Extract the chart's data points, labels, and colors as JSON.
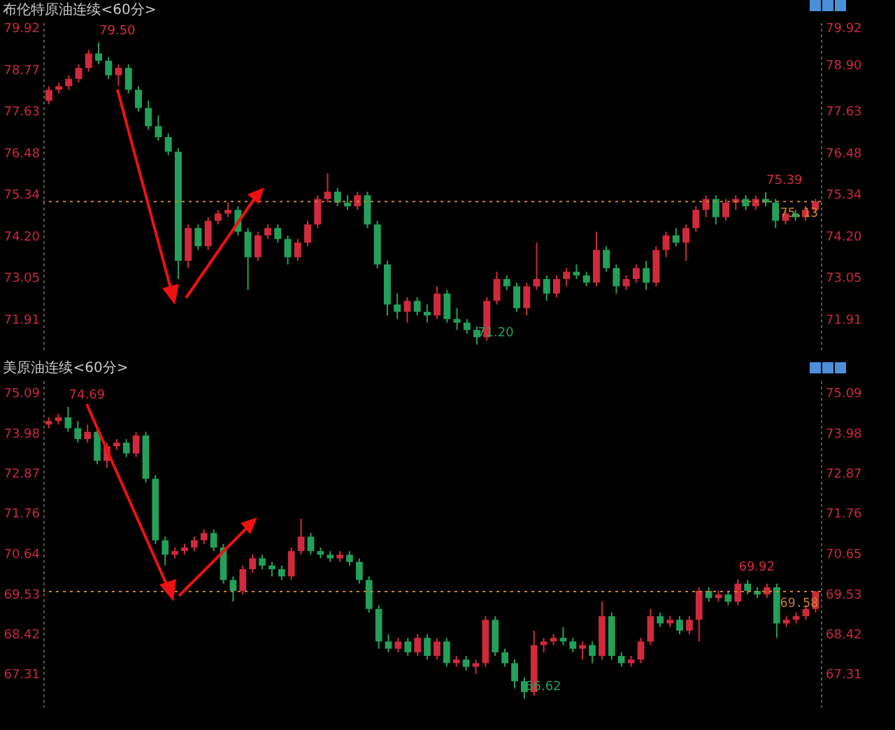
{
  "chart_data": [
    {
      "type": "candlestick",
      "title": "布伦特原油连续<60分>",
      "tick_labels": "y",
      "categories": [
        null,
        null,
        null,
        null,
        null,
        null,
        null,
        null,
        null,
        null,
        null,
        null,
        null,
        null,
        null,
        null,
        null,
        null,
        null,
        null,
        null,
        null,
        null,
        null,
        null,
        null,
        null,
        null,
        null,
        null,
        null,
        null,
        null,
        null,
        null,
        null,
        null,
        null,
        null,
        null,
        null,
        null,
        null,
        null,
        null,
        null,
        null,
        null,
        null,
        null,
        null,
        null,
        null,
        null,
        null,
        null,
        null,
        null,
        null,
        null,
        null,
        null,
        null,
        null,
        null,
        null,
        null,
        null,
        null,
        null,
        null,
        null,
        null,
        null,
        null,
        null,
        null,
        null
      ],
      "ohlc": [
        [
          77.9,
          78.3,
          77.8,
          78.2
        ],
        [
          78.2,
          78.4,
          78.1,
          78.3
        ],
        [
          78.3,
          78.6,
          78.2,
          78.5
        ],
        [
          78.5,
          78.9,
          78.4,
          78.8
        ],
        [
          78.8,
          79.3,
          78.7,
          79.2
        ],
        [
          79.2,
          79.5,
          78.9,
          79.0
        ],
        [
          79.0,
          79.1,
          78.5,
          78.6
        ],
        [
          78.6,
          78.9,
          78.3,
          78.8
        ],
        [
          78.8,
          78.9,
          78.1,
          78.2
        ],
        [
          78.2,
          78.3,
          77.6,
          77.7
        ],
        [
          77.7,
          77.9,
          77.1,
          77.2
        ],
        [
          77.2,
          77.5,
          76.8,
          76.9
        ],
        [
          76.9,
          77.0,
          76.4,
          76.5
        ],
        [
          76.5,
          76.6,
          73.0,
          73.5
        ],
        [
          73.5,
          74.5,
          73.3,
          74.4
        ],
        [
          74.4,
          74.5,
          73.8,
          73.9
        ],
        [
          73.9,
          74.7,
          73.8,
          74.6
        ],
        [
          74.6,
          74.9,
          74.5,
          74.8
        ],
        [
          74.8,
          75.1,
          74.7,
          74.9
        ],
        [
          74.9,
          75.0,
          74.2,
          74.3
        ],
        [
          74.3,
          74.4,
          72.7,
          73.6
        ],
        [
          73.6,
          74.3,
          73.5,
          74.2
        ],
        [
          74.2,
          74.5,
          74.1,
          74.4
        ],
        [
          74.4,
          74.5,
          74.0,
          74.1
        ],
        [
          74.1,
          74.2,
          73.4,
          73.6
        ],
        [
          73.6,
          74.1,
          73.5,
          74.0
        ],
        [
          74.0,
          74.6,
          73.9,
          74.5
        ],
        [
          74.5,
          75.3,
          74.4,
          75.2
        ],
        [
          75.2,
          75.9,
          75.1,
          75.4
        ],
        [
          75.4,
          75.5,
          75.0,
          75.1
        ],
        [
          75.1,
          75.3,
          74.9,
          75.0
        ],
        [
          75.0,
          75.4,
          74.9,
          75.3
        ],
        [
          75.3,
          75.4,
          74.4,
          74.5
        ],
        [
          74.5,
          74.6,
          73.3,
          73.4
        ],
        [
          73.4,
          73.5,
          72.0,
          72.3
        ],
        [
          72.3,
          72.6,
          71.9,
          72.1
        ],
        [
          72.1,
          72.5,
          71.8,
          72.4
        ],
        [
          72.4,
          72.5,
          72.0,
          72.1
        ],
        [
          72.1,
          72.3,
          71.8,
          72.0
        ],
        [
          72.0,
          72.8,
          71.9,
          72.6
        ],
        [
          72.6,
          72.7,
          71.8,
          71.9
        ],
        [
          71.9,
          72.2,
          71.6,
          71.8
        ],
        [
          71.8,
          71.9,
          71.5,
          71.6
        ],
        [
          71.6,
          71.7,
          71.2,
          71.4
        ],
        [
          71.4,
          72.5,
          71.3,
          72.4
        ],
        [
          72.4,
          73.2,
          72.3,
          73.0
        ],
        [
          73.0,
          73.1,
          72.7,
          72.8
        ],
        [
          72.8,
          72.9,
          72.1,
          72.2
        ],
        [
          72.2,
          72.9,
          72.0,
          72.8
        ],
        [
          72.8,
          74.0,
          72.7,
          73.0
        ],
        [
          73.0,
          73.1,
          72.4,
          72.6
        ],
        [
          72.6,
          73.1,
          72.5,
          73.0
        ],
        [
          73.0,
          73.3,
          72.8,
          73.2
        ],
        [
          73.2,
          73.4,
          73.0,
          73.1
        ],
        [
          73.1,
          73.2,
          72.8,
          72.9
        ],
        [
          72.9,
          74.3,
          72.8,
          73.8
        ],
        [
          73.8,
          73.9,
          73.2,
          73.3
        ],
        [
          73.3,
          73.4,
          72.6,
          72.8
        ],
        [
          72.8,
          73.1,
          72.7,
          73.0
        ],
        [
          73.0,
          73.4,
          72.9,
          73.3
        ],
        [
          73.3,
          73.5,
          72.7,
          72.9
        ],
        [
          72.9,
          73.9,
          72.8,
          73.8
        ],
        [
          73.8,
          74.3,
          73.6,
          74.2
        ],
        [
          74.2,
          74.4,
          73.9,
          74.0
        ],
        [
          74.0,
          74.5,
          73.5,
          74.4
        ],
        [
          74.4,
          75.0,
          74.3,
          74.9
        ],
        [
          74.9,
          75.3,
          74.7,
          75.2
        ],
        [
          75.2,
          75.3,
          74.5,
          74.7
        ],
        [
          74.7,
          75.2,
          74.6,
          75.1
        ],
        [
          75.1,
          75.3,
          74.9,
          75.2
        ],
        [
          75.2,
          75.3,
          74.9,
          75.0
        ],
        [
          75.0,
          75.3,
          74.9,
          75.2
        ],
        [
          75.2,
          75.39,
          75.0,
          75.1
        ],
        [
          75.1,
          75.2,
          74.4,
          74.6
        ],
        [
          74.6,
          74.9,
          74.5,
          74.8
        ],
        [
          74.8,
          74.9,
          74.6,
          74.7
        ],
        [
          74.7,
          75.0,
          74.6,
          74.9
        ],
        [
          74.9,
          75.2,
          74.8,
          75.13
        ]
      ],
      "value_labels": [
        null,
        null,
        null,
        null,
        null,
        "79.50",
        null,
        null,
        null,
        null,
        null,
        null,
        null,
        null,
        null,
        null,
        null,
        null,
        null,
        null,
        null,
        null,
        null,
        null,
        null,
        null,
        null,
        null,
        null,
        null,
        null,
        null,
        null,
        null,
        null,
        null,
        null,
        null,
        null,
        null,
        null,
        null,
        null,
        "71.20",
        null,
        null,
        null,
        null,
        null,
        null,
        null,
        null,
        null,
        null,
        null,
        null,
        null,
        null,
        null,
        null,
        null,
        null,
        null,
        null,
        null,
        null,
        null,
        null,
        null,
        null,
        null,
        null,
        "75.39",
        null,
        null,
        null,
        null,
        null
      ],
      "ylim": [
        71.06,
        80.13
      ],
      "yticks": [
        79.92,
        78.77,
        77.63,
        76.48,
        75.34,
        {
          "value": 74.2,
          "label": "74.20"
        },
        73.05,
        71.91
      ],
      "y2lim": [
        71.06,
        80.13
      ],
      "y2ticks": [
        79.92,
        {
          "value": 78.9,
          "label": "78.90"
        },
        77.63,
        76.48,
        75.34,
        {
          "value": 74.2,
          "label": "74.20"
        },
        73.05,
        71.91
      ],
      "ref_lines": [
        {
          "axis": "y",
          "value": 75.13,
          "label": "75.13",
          "line_style": "dotted",
          "color": "#c8822a"
        }
      ]
    },
    {
      "type": "candlestick",
      "title": "美原油连续<60分>",
      "tick_labels": "y",
      "categories": [
        null,
        null,
        null,
        null,
        null,
        null,
        null,
        null,
        null,
        null,
        null,
        null,
        null,
        null,
        null,
        null,
        null,
        null,
        null,
        null,
        null,
        null,
        null,
        null,
        null,
        null,
        null,
        null,
        null,
        null,
        null,
        null,
        null,
        null,
        null,
        null,
        null,
        null,
        null,
        null,
        null,
        null,
        null,
        null,
        null,
        null,
        null,
        null,
        null,
        null,
        null,
        null,
        null,
        null,
        null,
        null,
        null,
        null,
        null,
        null,
        null,
        null,
        null,
        null,
        null,
        null,
        null,
        null,
        null,
        null,
        null,
        null,
        null,
        null,
        null,
        null,
        null,
        null,
        null,
        null
      ],
      "ohlc": [
        [
          74.2,
          74.4,
          74.1,
          74.3
        ],
        [
          74.3,
          74.5,
          74.2,
          74.4
        ],
        [
          74.4,
          74.69,
          74.0,
          74.1
        ],
        [
          74.1,
          74.3,
          73.7,
          73.8
        ],
        [
          73.8,
          74.2,
          73.7,
          74.0
        ],
        [
          74.0,
          74.1,
          73.1,
          73.2
        ],
        [
          73.2,
          73.7,
          73.0,
          73.6
        ],
        [
          73.6,
          73.8,
          73.5,
          73.7
        ],
        [
          73.7,
          73.8,
          73.3,
          73.4
        ],
        [
          73.4,
          74.0,
          73.3,
          73.9
        ],
        [
          73.9,
          74.0,
          72.6,
          72.7
        ],
        [
          72.7,
          72.8,
          70.9,
          71.0
        ],
        [
          71.0,
          71.1,
          70.3,
          70.6
        ],
        [
          70.6,
          70.8,
          70.5,
          70.7
        ],
        [
          70.7,
          70.9,
          70.6,
          70.8
        ],
        [
          70.8,
          71.1,
          70.7,
          71.0
        ],
        [
          71.0,
          71.3,
          70.9,
          71.2
        ],
        [
          71.2,
          71.3,
          70.7,
          70.8
        ],
        [
          70.8,
          70.9,
          69.8,
          69.9
        ],
        [
          69.9,
          70.0,
          69.3,
          69.6
        ],
        [
          69.6,
          70.3,
          69.5,
          70.2
        ],
        [
          70.2,
          70.6,
          70.1,
          70.5
        ],
        [
          70.5,
          70.6,
          70.2,
          70.3
        ],
        [
          70.3,
          70.4,
          70.0,
          70.2
        ],
        [
          70.2,
          70.3,
          69.9,
          70.0
        ],
        [
          70.0,
          70.8,
          69.9,
          70.7
        ],
        [
          70.7,
          71.6,
          70.6,
          71.1
        ],
        [
          71.1,
          71.2,
          70.6,
          70.7
        ],
        [
          70.7,
          70.8,
          70.5,
          70.6
        ],
        [
          70.6,
          70.7,
          70.4,
          70.5
        ],
        [
          70.5,
          70.7,
          70.4,
          70.6
        ],
        [
          70.6,
          70.7,
          70.3,
          70.4
        ],
        [
          70.4,
          70.5,
          69.8,
          69.9
        ],
        [
          69.9,
          70.0,
          69.0,
          69.1
        ],
        [
          69.1,
          69.2,
          68.0,
          68.2
        ],
        [
          68.2,
          68.4,
          67.9,
          68.0
        ],
        [
          68.0,
          68.3,
          67.9,
          68.2
        ],
        [
          68.2,
          68.3,
          67.8,
          67.9
        ],
        [
          67.9,
          68.4,
          67.8,
          68.3
        ],
        [
          68.3,
          68.4,
          67.7,
          67.8
        ],
        [
          67.8,
          68.3,
          67.7,
          68.2
        ],
        [
          68.2,
          68.3,
          67.5,
          67.6
        ],
        [
          67.6,
          67.8,
          67.5,
          67.7
        ],
        [
          67.7,
          67.8,
          67.4,
          67.5
        ],
        [
          67.5,
          67.7,
          67.3,
          67.6
        ],
        [
          67.6,
          68.9,
          67.5,
          68.8
        ],
        [
          68.8,
          68.9,
          67.8,
          67.9
        ],
        [
          67.9,
          68.0,
          67.5,
          67.6
        ],
        [
          67.6,
          67.7,
          66.9,
          67.1
        ],
        [
          67.1,
          67.2,
          66.62,
          66.8
        ],
        [
          66.8,
          68.5,
          66.7,
          68.1
        ],
        [
          68.1,
          68.3,
          67.9,
          68.2
        ],
        [
          68.2,
          68.4,
          68.1,
          68.3
        ],
        [
          68.3,
          68.6,
          68.1,
          68.2
        ],
        [
          68.2,
          68.3,
          67.9,
          68.0
        ],
        [
          68.0,
          68.2,
          67.7,
          68.1
        ],
        [
          68.1,
          68.2,
          67.6,
          67.8
        ],
        [
          67.8,
          69.3,
          67.7,
          68.9
        ],
        [
          68.9,
          69.0,
          67.7,
          67.8
        ],
        [
          67.8,
          67.9,
          67.5,
          67.6
        ],
        [
          67.6,
          67.8,
          67.5,
          67.7
        ],
        [
          67.7,
          68.3,
          67.6,
          68.2
        ],
        [
          68.2,
          69.1,
          68.1,
          68.9
        ],
        [
          68.9,
          69.0,
          68.6,
          68.7
        ],
        [
          68.7,
          68.9,
          68.6,
          68.8
        ],
        [
          68.8,
          68.9,
          68.4,
          68.5
        ],
        [
          68.5,
          68.9,
          68.4,
          68.8
        ],
        [
          68.8,
          69.7,
          68.2,
          69.6
        ],
        [
          69.6,
          69.7,
          69.3,
          69.4
        ],
        [
          69.4,
          69.6,
          69.3,
          69.5
        ],
        [
          69.5,
          69.6,
          69.2,
          69.3
        ],
        [
          69.3,
          69.92,
          69.2,
          69.8
        ],
        [
          69.8,
          69.9,
          69.5,
          69.6
        ],
        [
          69.6,
          69.7,
          69.4,
          69.5
        ],
        [
          69.5,
          69.8,
          69.4,
          69.7
        ],
        [
          69.7,
          69.8,
          68.3,
          68.7
        ],
        [
          68.7,
          68.9,
          68.6,
          68.8
        ],
        [
          68.8,
          69.0,
          68.7,
          68.9
        ],
        [
          68.9,
          69.2,
          68.8,
          69.1
        ],
        [
          69.1,
          69.6,
          69.0,
          69.58
        ]
      ],
      "value_labels": [
        null,
        null,
        "74.69",
        null,
        null,
        null,
        null,
        null,
        null,
        null,
        null,
        null,
        null,
        null,
        null,
        null,
        null,
        null,
        null,
        null,
        null,
        null,
        null,
        null,
        null,
        null,
        null,
        null,
        null,
        null,
        null,
        null,
        null,
        null,
        null,
        null,
        null,
        null,
        null,
        null,
        null,
        null,
        null,
        null,
        null,
        null,
        null,
        null,
        null,
        "66.62",
        null,
        null,
        null,
        null,
        null,
        null,
        null,
        null,
        null,
        null,
        null,
        null,
        null,
        null,
        null,
        null,
        null,
        null,
        null,
        null,
        null,
        "69.92",
        null,
        null,
        null,
        null,
        null,
        null,
        null,
        null
      ],
      "ylim": [
        66.37,
        75.5
      ],
      "yticks": [
        75.09,
        73.98,
        72.87,
        71.76,
        70.64,
        69.53,
        68.42,
        67.31
      ],
      "y2lim": [
        66.37,
        75.5
      ],
      "y2ticks": [
        75.09,
        73.98,
        72.87,
        71.76,
        {
          "value": 70.65,
          "label": "70.65"
        },
        69.53,
        68.42,
        67.31
      ],
      "ref_lines": [
        {
          "axis": "y",
          "value": 69.58,
          "label": "69.58",
          "line_style": "dotted",
          "color": "#c8822a"
        }
      ]
    }
  ]
}
